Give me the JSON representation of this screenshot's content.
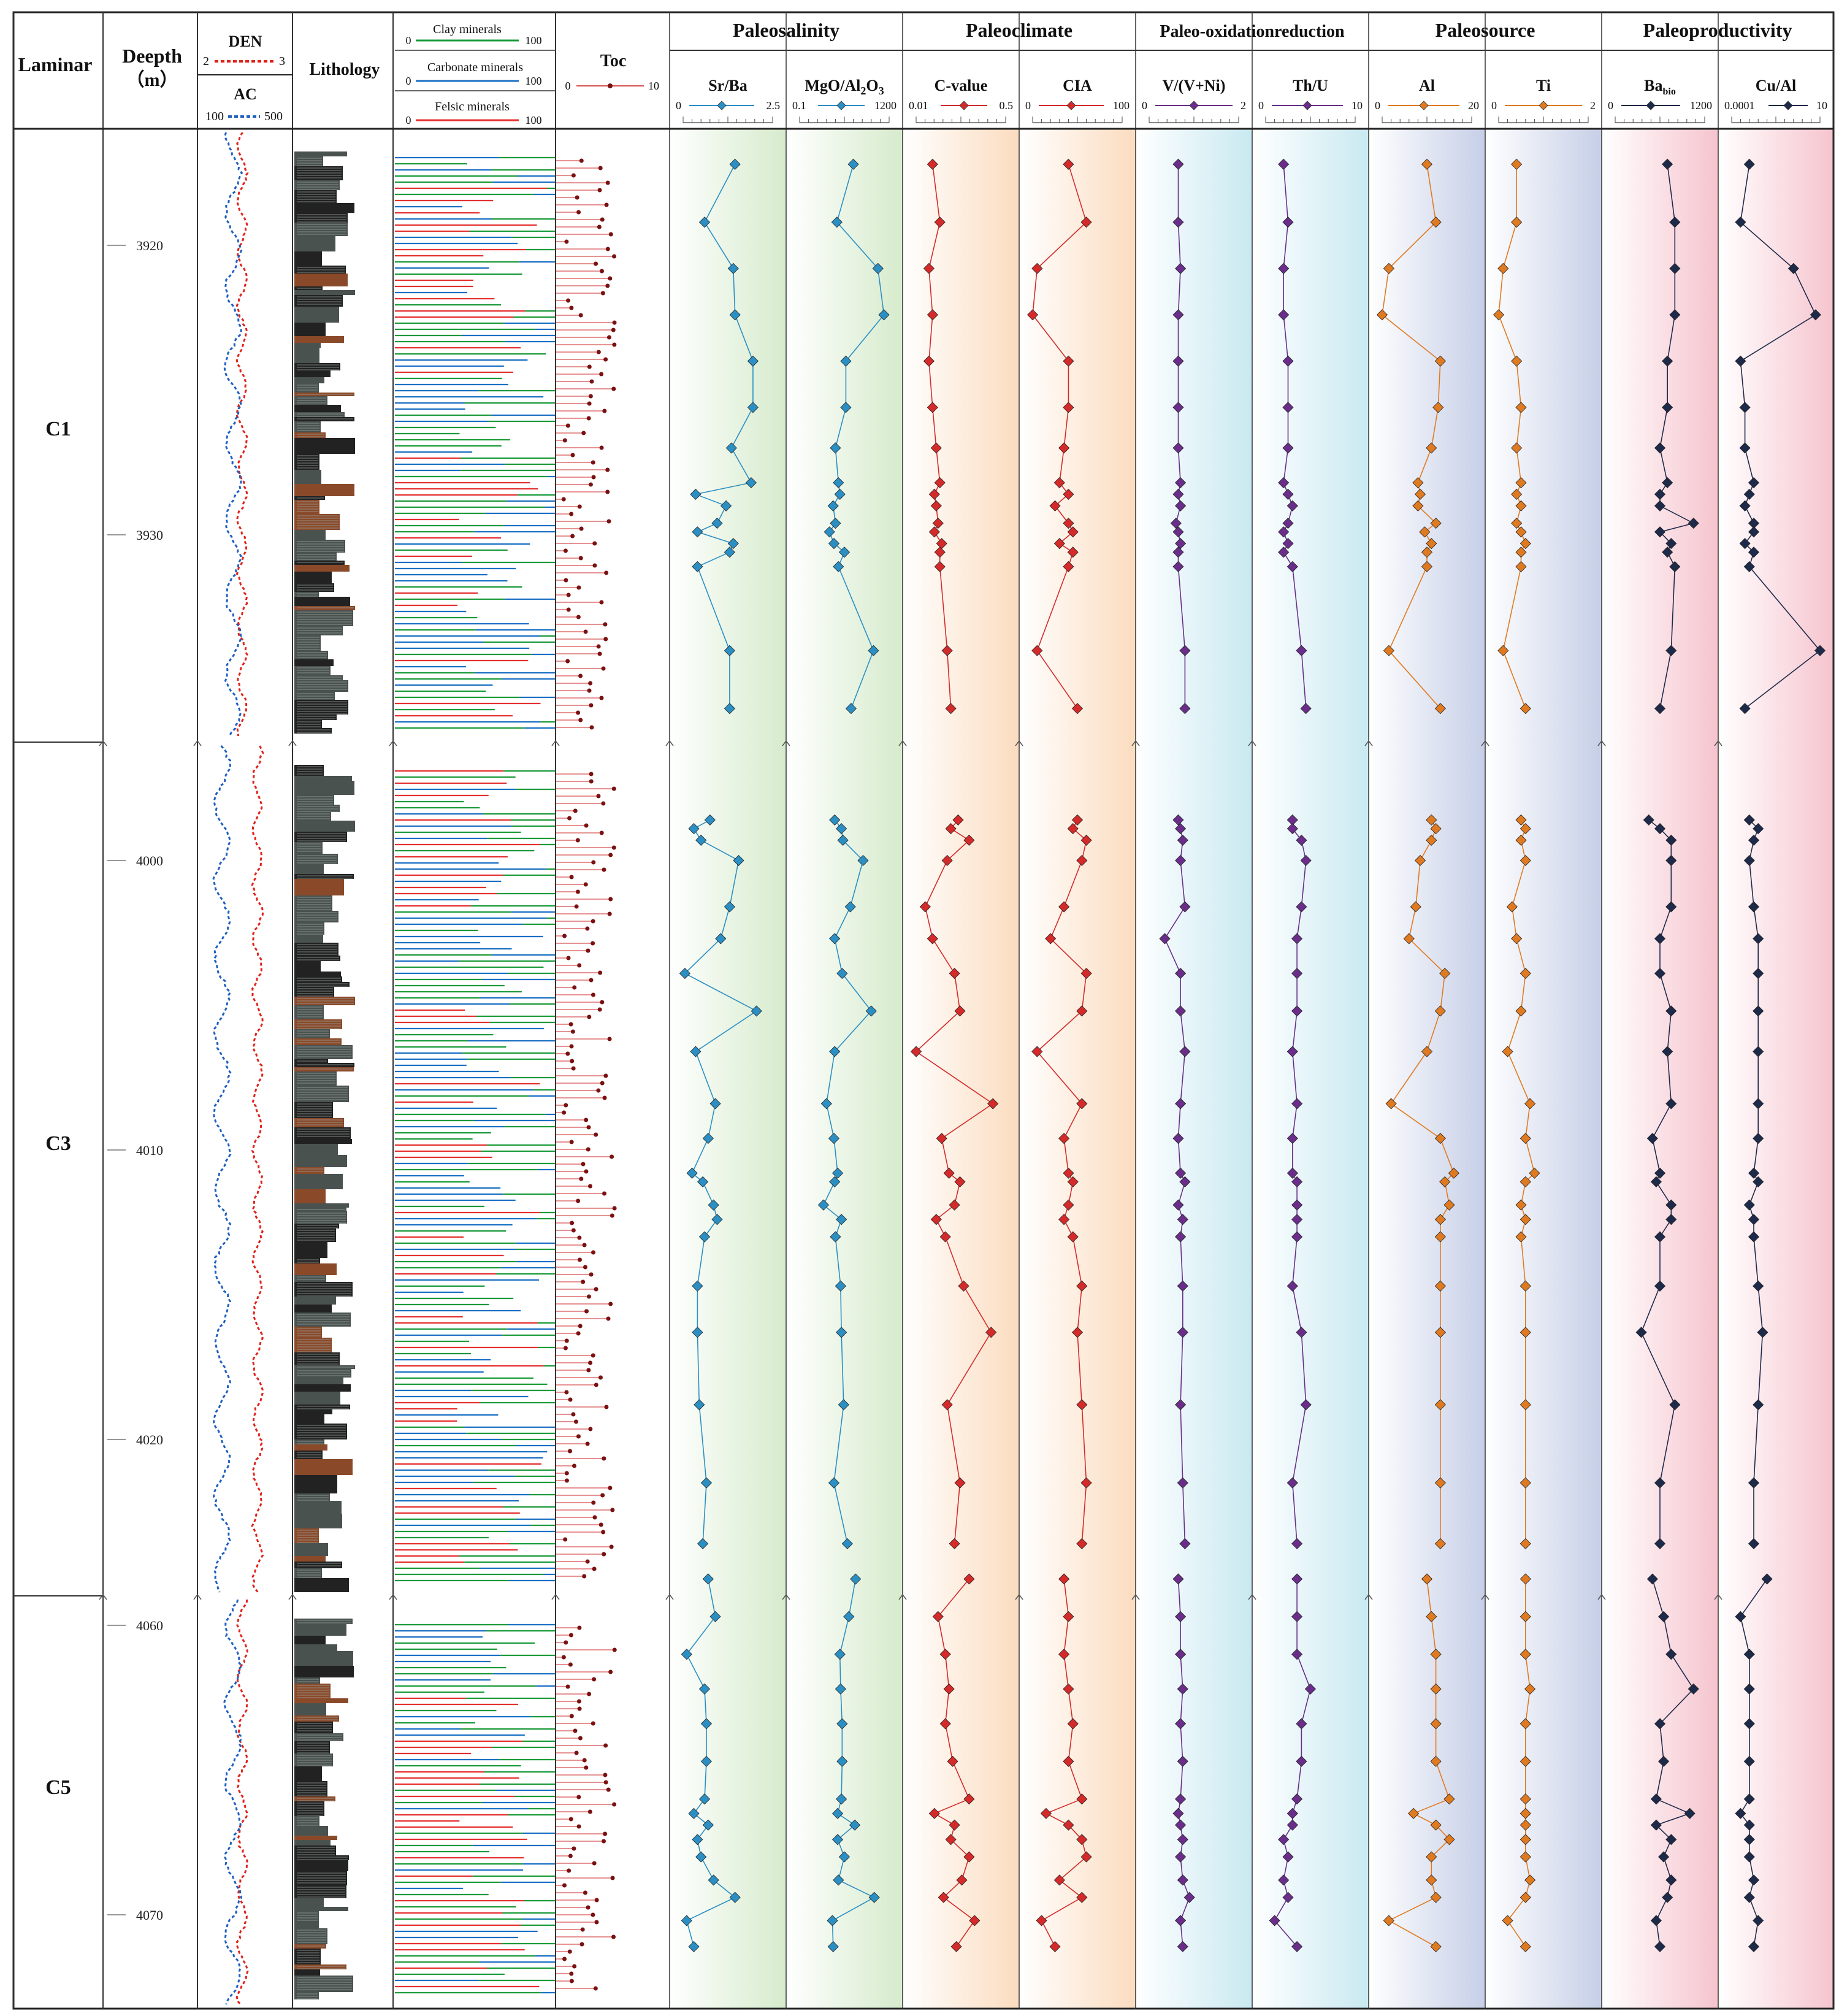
{
  "headers": {
    "laminar": "Laminar",
    "depth": "Deepth",
    "depth_unit": "（m）",
    "den": "DEN",
    "den_min": "2",
    "den_max": "3",
    "ac": "AC",
    "ac_min": "100",
    "ac_max": "500",
    "lithology": "Lithology",
    "clay": "Clay minerals",
    "carbonate": "Carbonate minerals",
    "felsic": "Felsic minerals",
    "mineral_min": "0",
    "mineral_max": "100",
    "toc": "Toc",
    "toc_min": "0",
    "toc_max": "10"
  },
  "groups": [
    "Paleosalinity",
    "Paleoclimate",
    "Paleo-oxidationreduction",
    "Paleosource",
    "Paleoproductivity"
  ],
  "colors": {
    "den": "#e0231b",
    "ac": "#1f5fbf",
    "clay": "#1a9a3a",
    "carbonate": "#1a6fc4",
    "felsic": "#e53030",
    "toc_line": "#d85050",
    "toc_point": "#7a1010",
    "lith_dark": "#222222",
    "lith_grey": "#4a5250",
    "lith_brown": "#8a4a2a"
  },
  "sections": [
    {
      "label": "C1",
      "depth_range": [
        3916,
        3936
      ]
    },
    {
      "label": "C3",
      "depth_range": [
        3997,
        4026
      ]
    },
    {
      "label": "C5",
      "depth_range": [
        4058,
        4073.5
      ]
    }
  ],
  "depth_ticks": [
    {
      "label": "3920",
      "value": 3920
    },
    {
      "label": "3930",
      "value": 3930
    },
    {
      "label": "4000",
      "value": 4000
    },
    {
      "label": "4010",
      "value": 4010
    },
    {
      "label": "4020",
      "value": 4020
    },
    {
      "label": "4060",
      "value": 4060
    },
    {
      "label": "4070",
      "value": 4070
    }
  ],
  "chart_data": {
    "type": "line",
    "depth_unit": "m",
    "sample_depths": [
      3917.2,
      3919.2,
      3920.8,
      3922.4,
      3924.0,
      3925.6,
      3927.0,
      3928.2,
      3928.6,
      3929.0,
      3929.6,
      3929.9,
      3930.3,
      3930.6,
      3931.1,
      3934.0,
      3936.0,
      3998.6,
      3998.9,
      3999.3,
      4000.0,
      4001.6,
      4002.7,
      4003.9,
      4005.2,
      4006.6,
      4008.4,
      4009.6,
      4010.8,
      4011.1,
      4011.9,
      4012.4,
      4013.0,
      4014.7,
      4016.3,
      4018.8,
      4021.5,
      4023.6,
      4058.4,
      4059.7,
      4061.0,
      4062.2,
      4063.4,
      4064.7,
      4066.0,
      4066.5,
      4066.9,
      4067.4,
      4068.0,
      4068.8,
      4069.4,
      4070.2,
      4071.1
    ],
    "series": [
      {
        "name": "Sr/Ba",
        "range": [
          0,
          2.5
        ],
        "color": "#2b8fc4",
        "values": [
          1.45,
          0.6,
          1.4,
          1.45,
          1.95,
          1.95,
          1.35,
          1.9,
          0.35,
          1.2,
          0.95,
          0.4,
          1.4,
          1.3,
          0.4,
          1.3,
          1.3,
          0.75,
          0.3,
          0.5,
          1.55,
          1.3,
          1.05,
          0.05,
          2.05,
          0.35,
          0.9,
          0.7,
          0.25,
          0.55,
          0.85,
          0.95,
          0.6,
          0.4,
          0.4,
          0.45,
          0.65,
          0.55,
          0.7,
          0.9,
          0.1,
          0.6,
          0.65,
          0.65,
          0.6,
          0.3,
          0.7,
          0.4,
          0.5,
          0.85,
          1.45,
          0.1,
          0.3
        ]
      },
      {
        "name": "MgO/Al2O3",
        "range": [
          0.1,
          1200
        ],
        "color": "#2b8fc4",
        "values": [
          720,
          500,
          1050,
          1130,
          620,
          620,
          480,
          520,
          540,
          450,
          480,
          400,
          460,
          600,
          520,
          990,
          690,
          470,
          560,
          580,
          850,
          680,
          470,
          570,
          960,
          470,
          360,
          460,
          510,
          470,
          320,
          560,
          480,
          550,
          560,
          590,
          460,
          640,
          750,
          660,
          540,
          550,
          570,
          570,
          560,
          510,
          740,
          510,
          600,
          520,
          1000,
          440,
          450
        ]
      },
      {
        "name": "C-value",
        "range": [
          0.01,
          0.5
        ],
        "color": "#d42a2a",
        "values": [
          0.1,
          0.14,
          0.08,
          0.1,
          0.08,
          0.1,
          0.12,
          0.14,
          0.11,
          0.12,
          0.13,
          0.11,
          0.15,
          0.14,
          0.14,
          0.18,
          0.2,
          0.24,
          0.2,
          0.3,
          0.18,
          0.06,
          0.1,
          0.22,
          0.25,
          0.01,
          0.43,
          0.15,
          0.19,
          0.25,
          0.22,
          0.12,
          0.17,
          0.27,
          0.42,
          0.18,
          0.25,
          0.22,
          0.3,
          0.13,
          0.17,
          0.19,
          0.17,
          0.21,
          0.3,
          0.11,
          0.22,
          0.2,
          0.3,
          0.26,
          0.16,
          0.33,
          0.23
        ]
      },
      {
        "name": "CIA",
        "range": [
          0,
          100
        ],
        "color": "#d42a2a",
        "values": [
          40,
          60,
          5,
          0,
          40,
          40,
          35,
          30,
          40,
          25,
          40,
          45,
          30,
          45,
          40,
          5,
          50,
          50,
          45,
          60,
          55,
          35,
          20,
          60,
          55,
          5,
          55,
          35,
          40,
          45,
          40,
          35,
          45,
          55,
          50,
          55,
          60,
          55,
          35,
          40,
          35,
          40,
          45,
          40,
          55,
          15,
          40,
          55,
          60,
          30,
          55,
          10,
          25
        ]
      },
      {
        "name": "V/(V+Ni)",
        "range": [
          0,
          2
        ],
        "color": "#6a2e8a",
        "values": [
          0.65,
          0.65,
          0.7,
          0.65,
          0.65,
          0.65,
          0.65,
          0.7,
          0.65,
          0.7,
          0.6,
          0.65,
          0.7,
          0.65,
          0.65,
          0.8,
          0.8,
          0.65,
          0.7,
          0.75,
          0.7,
          0.8,
          0.35,
          0.7,
          0.7,
          0.8,
          0.7,
          0.65,
          0.7,
          0.8,
          0.65,
          0.75,
          0.7,
          0.75,
          0.75,
          0.7,
          0.75,
          0.8,
          0.65,
          0.7,
          0.7,
          0.75,
          0.7,
          0.75,
          0.7,
          0.65,
          0.7,
          0.75,
          0.7,
          0.75,
          0.9,
          0.7,
          0.75
        ]
      },
      {
        "name": "Th/U",
        "range": [
          0,
          10
        ],
        "color": "#6a2e8a",
        "values": [
          2,
          2.5,
          2,
          2,
          2.5,
          2.5,
          2.5,
          2,
          2.5,
          3,
          2.5,
          2,
          2.5,
          2,
          3,
          4,
          4.5,
          3,
          3,
          4,
          4.5,
          4,
          3.5,
          3.5,
          3.5,
          3,
          3.5,
          3,
          3,
          3.5,
          3.5,
          3.5,
          3.5,
          3,
          4,
          4.5,
          3,
          3.5,
          3.5,
          3.5,
          3.5,
          5,
          4,
          4,
          3.5,
          3,
          3,
          2,
          2.5,
          2,
          2.5,
          1,
          3.5
        ]
      },
      {
        "name": "Al",
        "range": [
          0,
          20
        ],
        "color": "#e07a20",
        "values": [
          10,
          12,
          1.5,
          0,
          13,
          12.5,
          11,
          8,
          8.5,
          8,
          12,
          9.5,
          11,
          10,
          10,
          1.5,
          13,
          11,
          12,
          11,
          8.5,
          7.5,
          6,
          14,
          13,
          10,
          2,
          13,
          16,
          14,
          15,
          13,
          13,
          13,
          13,
          13,
          13,
          13,
          10,
          11,
          12,
          12,
          12,
          12,
          15,
          7,
          12,
          15,
          11,
          11,
          12,
          1.5,
          12
        ]
      },
      {
        "name": "Ti",
        "range": [
          0,
          2
        ],
        "color": "#e07a20",
        "values": [
          0.4,
          0.4,
          0.1,
          0,
          0.4,
          0.5,
          0.4,
          0.5,
          0.4,
          0.5,
          0.4,
          0.5,
          0.6,
          0.5,
          0.5,
          0.1,
          0.6,
          0.5,
          0.6,
          0.5,
          0.6,
          0.3,
          0.4,
          0.6,
          0.5,
          0.2,
          0.7,
          0.6,
          0.8,
          0.6,
          0.5,
          0.6,
          0.5,
          0.6,
          0.6,
          0.6,
          0.6,
          0.6,
          0.6,
          0.6,
          0.6,
          0.7,
          0.6,
          0.6,
          0.6,
          0.6,
          0.6,
          0.6,
          0.6,
          0.7,
          0.6,
          0.2,
          0.6
        ]
      },
      {
        "name": "Babio",
        "range": [
          0,
          1200
        ],
        "color": "#1e2a4a",
        "values": [
          700,
          800,
          800,
          800,
          700,
          700,
          600,
          700,
          600,
          600,
          1050,
          600,
          750,
          700,
          800,
          750,
          600,
          450,
          600,
          750,
          750,
          750,
          600,
          600,
          750,
          700,
          750,
          500,
          600,
          550,
          750,
          750,
          600,
          600,
          350,
          800,
          600,
          600,
          500,
          650,
          750,
          1050,
          600,
          650,
          550,
          1000,
          550,
          750,
          650,
          750,
          700,
          550,
          600
        ]
      },
      {
        "name": "Cu/Al",
        "range": [
          0.0001,
          10
        ],
        "color": "#1e2a4a",
        "values": [
          2,
          1,
          7,
          9.5,
          1,
          1.5,
          1.5,
          2.5,
          2,
          1.5,
          2.5,
          2.5,
          1.5,
          2.5,
          2,
          10,
          1.5,
          2,
          3,
          2.5,
          2,
          2.5,
          3,
          3,
          3,
          3,
          3,
          3,
          2.5,
          3,
          2,
          2.5,
          2.5,
          3,
          3.5,
          3,
          2.5,
          2.5,
          4,
          1,
          2,
          2,
          2,
          2,
          2,
          1,
          2,
          2,
          2,
          2.5,
          2,
          3,
          2.5
        ]
      }
    ]
  }
}
